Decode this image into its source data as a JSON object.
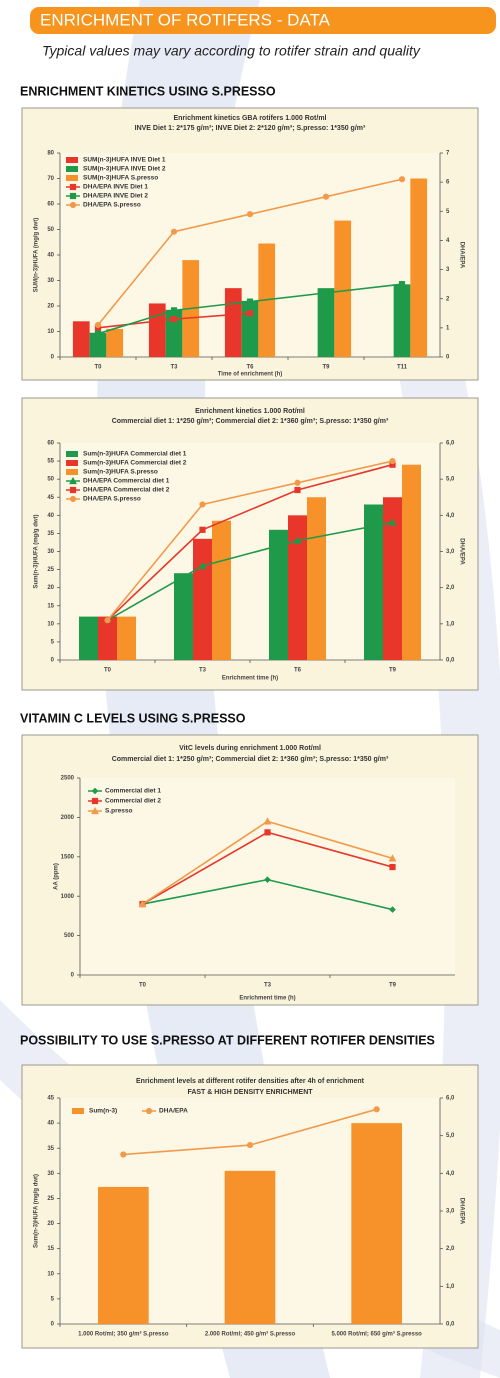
{
  "header": {
    "title": "ENRICHMENT OF ROTIFERS - DATA",
    "subtitle": "Typical values may vary according to rotifer strain and quality"
  },
  "sections": [
    {
      "heading": "ENRICHMENT KINETICS USING S.PRESSO"
    },
    {
      "heading": "VITAMIN C LEVELS USING S.PRESSO"
    },
    {
      "heading": "POSSIBILITY TO USE S.PRESSO AT DIFFERENT ROTIFER DENSITIES"
    }
  ],
  "chart_data": [
    {
      "type": "bar",
      "title": "Enrichment kinetics GBA rotifers 1.000 Rot/ml",
      "subtitle": "INVE Diet 1: 2*175 g/m³; INVE Diet 2: 2*120 g/m³; S.presso: 1*350 g/m³",
      "x_label": "Time of enrichment (h)",
      "y_label": "SUM(n-3)HUFA (mg/g dwt)",
      "y2_label": "DHA/EPA",
      "legend": "upper left",
      "categories": [
        "T0",
        "T3",
        "T6",
        "T9",
        "T11"
      ],
      "ylim": [
        0,
        80
      ],
      "yticks": [
        0,
        10,
        20,
        30,
        40,
        50,
        60,
        70,
        80
      ],
      "y2lim": [
        0,
        7
      ],
      "y2ticks": [
        0,
        1,
        2,
        3,
        4,
        5,
        6,
        7
      ],
      "series": [
        {
          "name": "SUM(n-3)HUFA INVE Diet 1",
          "type": "bar",
          "color": "#e8362b",
          "values": [
            14,
            21,
            27,
            null,
            null
          ]
        },
        {
          "name": "SUM(n-3)HUFA INVE Diet 2",
          "type": "bar",
          "color": "#1e9a4a",
          "values": [
            9.5,
            18.5,
            22,
            27,
            28.5
          ]
        },
        {
          "name": "SUM(n-3)HUFA S.presso",
          "type": "bar",
          "color": "#f7922a",
          "values": [
            11,
            38,
            44.5,
            53.5,
            70
          ]
        },
        {
          "name": "DHA/EPA INVE Diet 1",
          "type": "line",
          "axis": "y2",
          "marker": "square",
          "color": "#e8362b",
          "values": [
            1.0,
            1.3,
            1.5,
            null,
            null
          ]
        },
        {
          "name": "DHA/EPA INVE Diet 2",
          "type": "line",
          "axis": "y2",
          "marker": "square",
          "color": "#1e9a4a",
          "values": [
            0.8,
            1.6,
            1.9,
            2.2,
            2.5
          ]
        },
        {
          "name": "DHA/EPA S.presso",
          "type": "line",
          "axis": "y2",
          "marker": "circle",
          "color": "#f39a4a",
          "values": [
            1.1,
            4.3,
            4.9,
            5.5,
            6.1
          ]
        }
      ]
    },
    {
      "type": "bar",
      "title": "Enrichment kinetics 1.000 Rot/ml",
      "subtitle": "Commercial diet 1: 1*250 g/m³; Commercial diet 2: 1*360 g/m³; S.presso: 1*350 g/m³",
      "x_label": "Enrichment time (h)",
      "y_label": "Sum(n-3)HUFA (mg/g dwt)",
      "y2_label": "DHA/EPA",
      "legend": "upper left",
      "categories": [
        "T0",
        "T3",
        "T6",
        "T9"
      ],
      "ylim": [
        0,
        60
      ],
      "yticks": [
        0,
        5,
        10,
        15,
        20,
        25,
        30,
        35,
        40,
        45,
        50,
        55,
        60
      ],
      "y2lim": [
        0,
        6
      ],
      "y2ticks": [
        {
          "value": 0,
          "label": "0,0"
        },
        {
          "value": 1,
          "label": "1,0"
        },
        {
          "value": 2,
          "label": "2,0"
        },
        {
          "value": 3,
          "label": "3,0"
        },
        {
          "value": 4,
          "label": "4,0"
        },
        {
          "value": 5,
          "label": "5,0"
        },
        {
          "value": 6,
          "label": "6,0"
        }
      ],
      "series": [
        {
          "name": "Sum(n-3)HUFA Commercial diet 1",
          "type": "bar",
          "color": "#1e9a4a",
          "values": [
            12,
            24,
            36,
            43
          ]
        },
        {
          "name": "Sum(n-3)HUFA Commercial diet 2",
          "type": "bar",
          "color": "#e8362b",
          "values": [
            12,
            33.5,
            40,
            45
          ]
        },
        {
          "name": "Sum(n-3)HUFA S.presso",
          "type": "bar",
          "color": "#f7922a",
          "values": [
            12,
            38.5,
            45,
            54
          ]
        },
        {
          "name": "DHA/EPA Commercial diet 1",
          "type": "line",
          "axis": "y2",
          "marker": "triangle",
          "color": "#1e9a4a",
          "values": [
            1.1,
            2.6,
            3.3,
            3.8
          ]
        },
        {
          "name": "DHA/EPA Commercial diet 2",
          "type": "line",
          "axis": "y2",
          "marker": "square",
          "color": "#e8362b",
          "values": [
            1.1,
            3.6,
            4.7,
            5.4
          ]
        },
        {
          "name": "DHA/EPA S.presso",
          "type": "line",
          "axis": "y2",
          "marker": "circle",
          "color": "#f39a4a",
          "values": [
            1.1,
            4.3,
            4.9,
            5.5
          ]
        }
      ]
    },
    {
      "type": "line",
      "title": "VitC levels during enrichment 1.000 Rot/ml",
      "subtitle": "Commercial diet 1: 1*250 g/m³; Commercial diet 2: 1*360 g/m³; S.presso: 1*350 g/m³",
      "x_label": "Enrichment time (h)",
      "y_label": "AA (ppm)",
      "legend": "upper left",
      "categories": [
        "T0",
        "T3",
        "T9"
      ],
      "ylim": [
        0,
        2500
      ],
      "yticks": [
        0,
        500,
        1000,
        1500,
        2000,
        2500
      ],
      "series": [
        {
          "name": "Commercial diet 1",
          "type": "line",
          "marker": "diamond",
          "color": "#1e9a4a",
          "values": [
            900,
            1210,
            830
          ]
        },
        {
          "name": "Commercial diet 2",
          "type": "line",
          "marker": "square",
          "color": "#e8362b",
          "values": [
            900,
            1810,
            1370
          ]
        },
        {
          "name": "S.presso",
          "type": "line",
          "marker": "triangle",
          "color": "#f39a4a",
          "values": [
            900,
            1950,
            1480
          ]
        }
      ]
    },
    {
      "type": "bar",
      "title": "Enrichment levels at different rotifer densities after 4h of enrichment",
      "subtitle": "FAST & HIGH DENSITY ENRICHMENT",
      "y_label": "Sum(n-3)HUFA (mg/g dwt)",
      "y2_label": "DHA/EPA",
      "legend": "upper left",
      "categories": [
        "1.000 Rot/ml; 350 g/m³ S.presso",
        "2.000 Rot/ml; 450 g/m³ S.presso",
        "5.000 Rot/ml; 650 g/m³ S.presso"
      ],
      "ylim": [
        0,
        45
      ],
      "yticks": [
        0,
        5,
        10,
        15,
        20,
        25,
        30,
        35,
        40,
        45
      ],
      "y2lim": [
        0,
        6
      ],
      "y2ticks": [
        {
          "value": 0,
          "label": "0,0"
        },
        {
          "value": 1,
          "label": "1,0"
        },
        {
          "value": 2,
          "label": "2,0"
        },
        {
          "value": 3,
          "label": "3,0"
        },
        {
          "value": 4,
          "label": "4,0"
        },
        {
          "value": 5,
          "label": "5,0"
        },
        {
          "value": 6,
          "label": "6,0"
        }
      ],
      "series": [
        {
          "name": "Sum(n-3)",
          "type": "bar",
          "color": "#f7922a",
          "values": [
            27.3,
            30.5,
            40
          ]
        },
        {
          "name": "DHA/EPA",
          "type": "line",
          "axis": "y2",
          "marker": "circle",
          "color": "#f39a4a",
          "values": [
            4.5,
            4.75,
            5.7
          ]
        }
      ]
    }
  ]
}
